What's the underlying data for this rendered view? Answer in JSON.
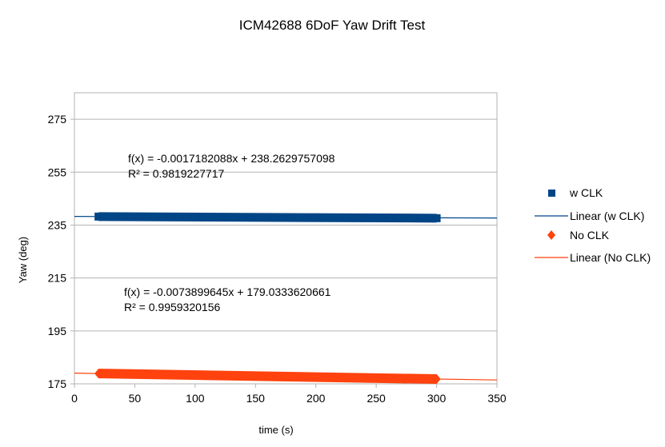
{
  "chart_data": {
    "type": "scatter",
    "title": "ICM42688 6DoF Yaw Drift Test",
    "xlabel": "time (s)",
    "ylabel": "Yaw (deg)",
    "xlim": [
      0,
      350
    ],
    "ylim": [
      175,
      285
    ],
    "x_ticks": [
      0,
      50,
      100,
      150,
      200,
      250,
      300,
      350
    ],
    "y_ticks": [
      175,
      195,
      215,
      235,
      255,
      275
    ],
    "grid": "horizontal",
    "legend_position": "right",
    "series": [
      {
        "name": "w CLK",
        "kind": "scatter",
        "marker": "square",
        "color": "#004586",
        "x_start": 20,
        "x_end": 300,
        "y_start": 238.2,
        "y_end": 237.6,
        "points": [
          [
            20,
            238.2
          ],
          [
            40,
            238.2
          ],
          [
            60,
            238.1
          ],
          [
            80,
            238.1
          ],
          [
            100,
            238.1
          ],
          [
            120,
            238.0
          ],
          [
            140,
            238.0
          ],
          [
            160,
            237.9
          ],
          [
            180,
            237.9
          ],
          [
            200,
            237.9
          ],
          [
            220,
            237.8
          ],
          [
            240,
            237.8
          ],
          [
            260,
            237.8
          ],
          [
            280,
            237.7
          ],
          [
            300,
            237.6
          ]
        ]
      },
      {
        "name": "Linear (w CLK)",
        "kind": "trendline",
        "color": "#004586",
        "slope": -0.0017182088,
        "intercept": 238.2629757098
      },
      {
        "name": "No CLK",
        "kind": "scatter",
        "marker": "diamond",
        "color": "#ff420e",
        "x_start": 20,
        "x_end": 300,
        "y_start": 178.9,
        "y_end": 176.8,
        "points": [
          [
            20,
            178.9
          ],
          [
            40,
            178.7
          ],
          [
            60,
            178.6
          ],
          [
            80,
            178.4
          ],
          [
            100,
            178.3
          ],
          [
            120,
            178.1
          ],
          [
            140,
            178.0
          ],
          [
            160,
            177.8
          ],
          [
            180,
            177.7
          ],
          [
            200,
            177.5
          ],
          [
            220,
            177.4
          ],
          [
            240,
            177.2
          ],
          [
            260,
            177.1
          ],
          [
            280,
            177.0
          ],
          [
            300,
            176.8
          ]
        ]
      },
      {
        "name": "Linear (No CLK)",
        "kind": "trendline",
        "color": "#ff420e",
        "slope": -0.0073899645,
        "intercept": 179.0333620661
      }
    ],
    "annotations": [
      {
        "series": "w CLK",
        "line1": "f(x) = -0.0017182088x + 238.2629757098",
        "line2": "R² = 0.9819227717"
      },
      {
        "series": "No CLK",
        "line1": "f(x) = -0.0073899645x + 179.0333620661",
        "line2": "R² = 0.9959320156"
      }
    ]
  }
}
